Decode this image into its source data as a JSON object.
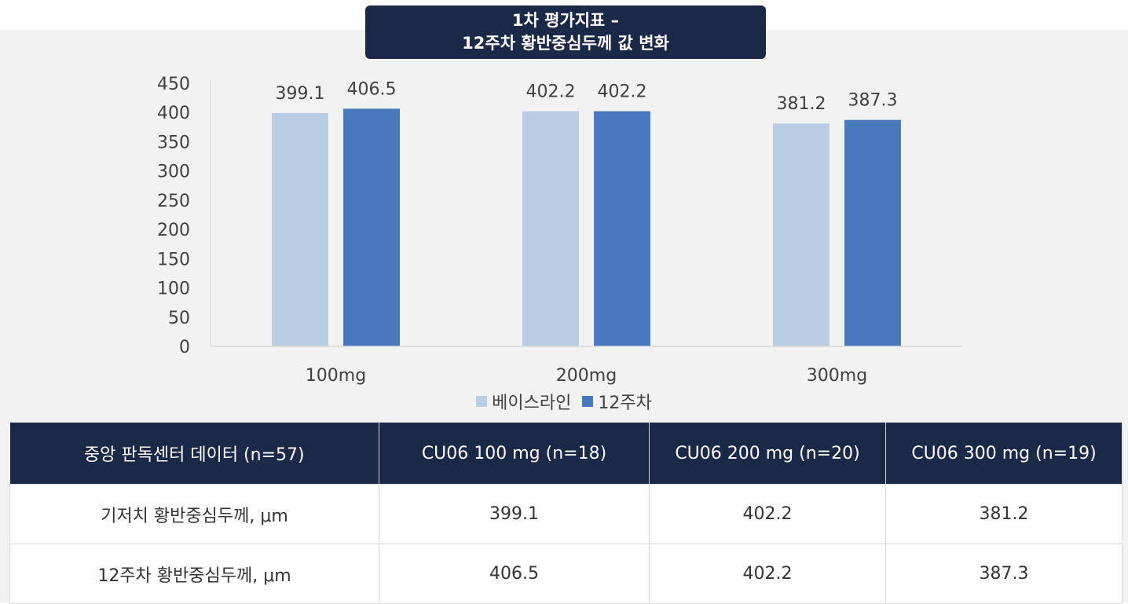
{
  "title": {
    "line1": "1차 평가지표 –",
    "line2": "12주차 황반중심두께 값 변화"
  },
  "colors": {
    "header_bg": "#1b2847",
    "baseline": "#b9cde5",
    "week12": "#4a78bd",
    "panel_bg": "#f2f2f2"
  },
  "chart_data": {
    "type": "bar",
    "categories": [
      "100mg",
      "200mg",
      "300mg"
    ],
    "series": [
      {
        "name": "베이스라인",
        "values": [
          399.1,
          402.2,
          381.2
        ],
        "labels": [
          "399.1",
          "402.2",
          "381.2"
        ]
      },
      {
        "name": "12주차",
        "values": [
          406.5,
          402.2,
          387.3
        ],
        "labels": [
          "406.5",
          "402.2",
          "387.3"
        ]
      }
    ],
    "ylim": [
      0,
      450
    ],
    "yticks": [
      "0",
      "50",
      "100",
      "150",
      "200",
      "250",
      "300",
      "350",
      "400",
      "450"
    ],
    "legend_position": "bottom",
    "grid": false
  },
  "legend": {
    "items": [
      "베이스라인",
      "12주차"
    ]
  },
  "table": {
    "headers": [
      "중앙 판독센터 데이터 (n=57)",
      "CU06 100 mg (n=18)",
      "CU06 200 mg (n=20)",
      "CU06 300 mg (n=19)"
    ],
    "rows": [
      [
        "기저치 황반중심두께, μm",
        "399.1",
        "402.2",
        "381.2"
      ],
      [
        "12주차 황반중심두께, μm",
        "406.5",
        "402.2",
        "387.3"
      ]
    ]
  }
}
